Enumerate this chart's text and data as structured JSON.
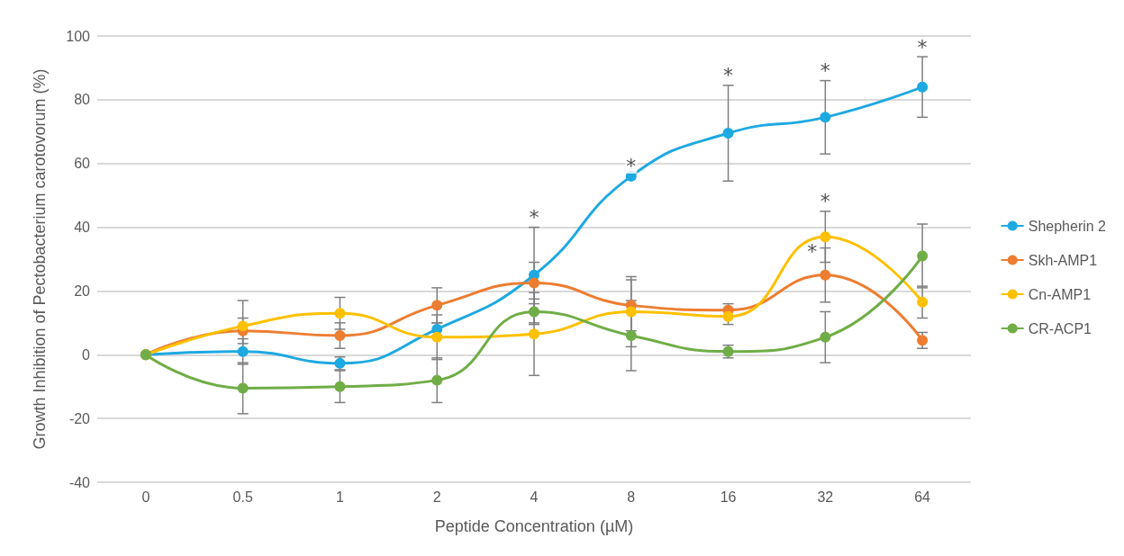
{
  "chart_data": {
    "type": "line",
    "xlabel": "Peptide Concentration (µM)",
    "ylabel": "Growth Inhibition of Pectobacterium carotovorum (%)",
    "categories": [
      "0",
      "0.5",
      "1",
      "2",
      "4",
      "8",
      "16",
      "32",
      "64"
    ],
    "series": [
      {
        "name": "Shepherin 2",
        "color": "#1ea9e1",
        "values": [
          0,
          1,
          -2.7,
          8,
          25,
          56,
          69.5,
          74.5,
          84
        ],
        "errors": [
          null,
          4,
          2,
          2,
          15,
          null,
          15,
          11.5,
          9.5
        ]
      },
      {
        "name": "Skh-AMP1",
        "color": "#ed7d31",
        "values": [
          0,
          7.5,
          6,
          15.5,
          22.5,
          15.5,
          14,
          25,
          4.5
        ],
        "errors": [
          null,
          4,
          4,
          5.5,
          6.5,
          8,
          2,
          8.5,
          2.5
        ]
      },
      {
        "name": "Cn-AMP1",
        "color": "#ffc000",
        "values": [
          0,
          9,
          13,
          5.5,
          6.5,
          13.5,
          12,
          37,
          16.5
        ],
        "errors": [
          null,
          8,
          5,
          7,
          13,
          11,
          2.5,
          8,
          5
        ]
      },
      {
        "name": "CR-ACP1",
        "color": "#70ad47",
        "values": [
          0,
          -10.5,
          -10,
          -8,
          13.5,
          6,
          1,
          5.5,
          31
        ],
        "errors": [
          null,
          8,
          5,
          7,
          4,
          11,
          2,
          8,
          10
        ]
      }
    ],
    "annotations": [
      {
        "text": "*",
        "x": "4",
        "y": 25
      },
      {
        "text": "*",
        "x": "8",
        "y": 56
      },
      {
        "text": "*",
        "x": "16",
        "y": 69.5
      },
      {
        "text": "*",
        "x": "32",
        "y": 74.5
      },
      {
        "text": "*",
        "x": "64",
        "y": 84
      },
      {
        "text": "*",
        "x": "32",
        "y": 25
      },
      {
        "text": "*",
        "x": "32",
        "y": 37
      }
    ],
    "ylim": [
      -40,
      100
    ],
    "yticks": [
      -40,
      -20,
      0,
      20,
      40,
      60,
      80,
      100
    ],
    "grid": "y",
    "legend": "right",
    "marker": "circle"
  }
}
